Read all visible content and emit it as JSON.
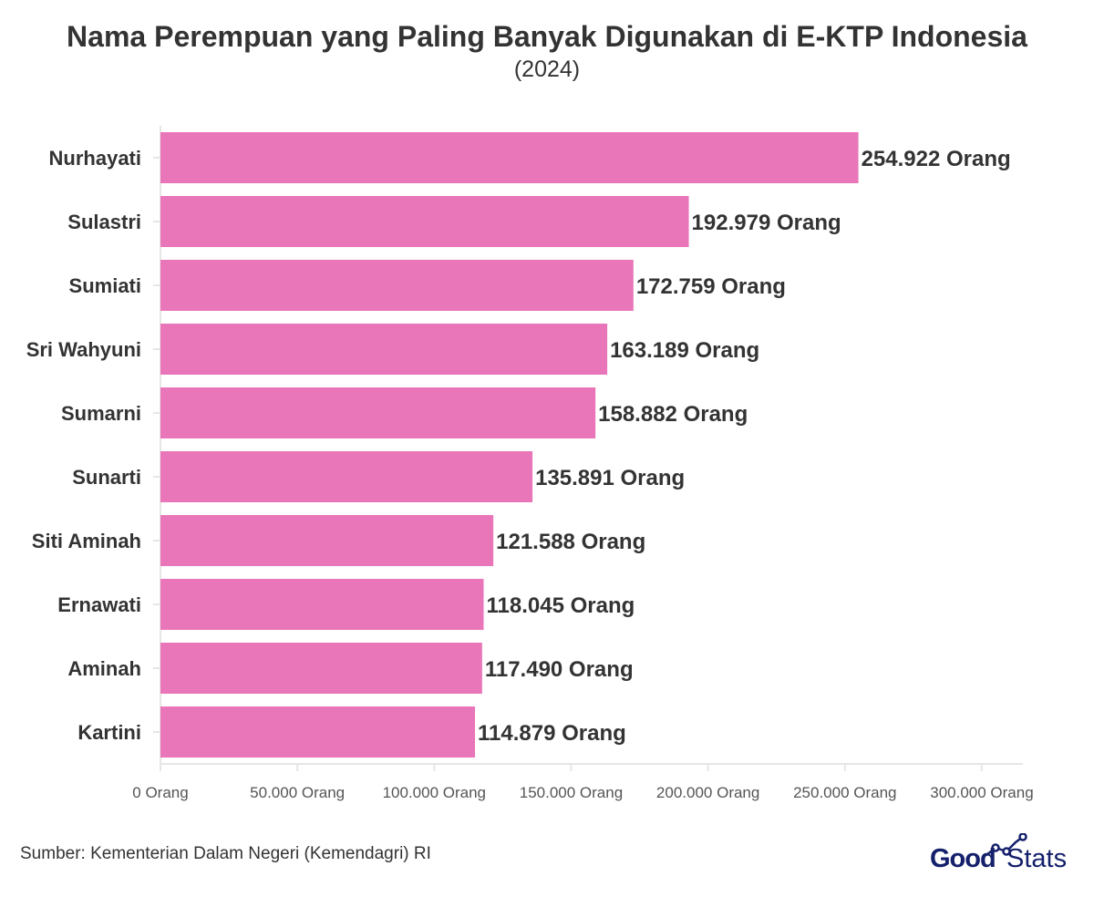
{
  "chart_data": {
    "type": "bar",
    "orientation": "horizontal",
    "title": "Nama Perempuan yang Paling Banyak Digunakan di E-KTP Indonesia",
    "subtitle": "(2024)",
    "categories": [
      "Nurhayati",
      "Sulastri",
      "Sumiati",
      "Sri Wahyuni",
      "Sumarni",
      "Sunarti",
      "Siti Aminah",
      "Ernawati",
      "Aminah",
      "Kartini"
    ],
    "values": [
      254922,
      192979,
      172759,
      163189,
      158882,
      135891,
      121588,
      118045,
      117490,
      114879
    ],
    "value_labels": [
      "254.922 Orang",
      "192.979 Orang",
      "172.759 Orang",
      "163.189 Orang",
      "158.882 Orang",
      "135.891 Orang",
      "121.588 Orang",
      "118.045 Orang",
      "117.490 Orang",
      "114.879 Orang"
    ],
    "xlim": [
      0,
      315000
    ],
    "x_ticks": [
      0,
      50000,
      100000,
      150000,
      200000,
      250000,
      300000
    ],
    "x_tick_labels": [
      "0 Orang",
      "50.000 Orang",
      "100.000 Orang",
      "150.000 Orang",
      "200.000 Orang",
      "250.000 Orang",
      "300.000 Orang"
    ],
    "bar_color": "#e976b8",
    "grid": false
  },
  "footer": {
    "source": "Sumber: Kementerian Dalam Negeri (Kemendagri) RI",
    "logo_part1": "Good",
    "logo_part2": "Stats",
    "logo_color": "#14206b"
  }
}
